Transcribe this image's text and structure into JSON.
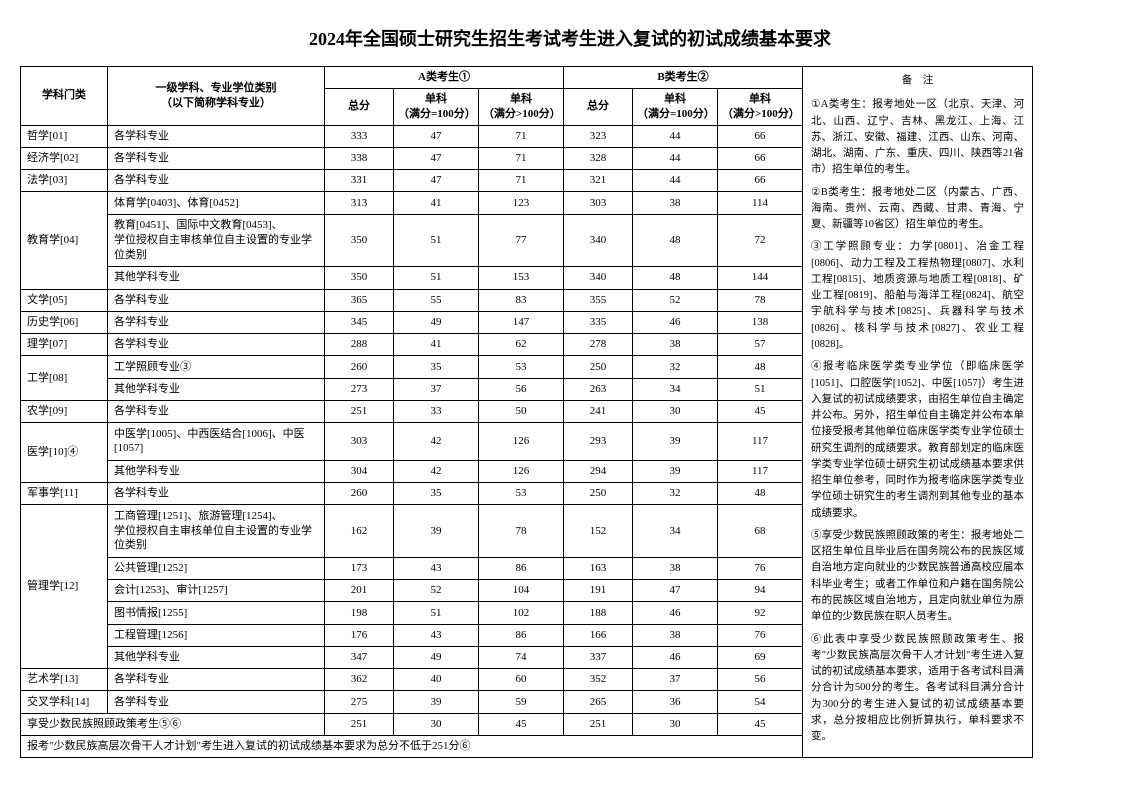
{
  "title": "2024年全国硕士研究生招生考试考生进入复试的初试成绩基本要求",
  "headers": {
    "category": "学科门类",
    "major": "一级学科、专业学位类别\n（以下简称学科专业）",
    "groupA": "A类考生①",
    "groupB": "B类考生②",
    "total": "总分",
    "sub100": "单科\n（满分=100分）",
    "subOver100": "单科\n（满分>100分）",
    "notes": "备　注"
  },
  "rows": [
    {
      "cat": "哲学[01]",
      "major": "各学科专业",
      "a": [
        333,
        47,
        71
      ],
      "b": [
        323,
        44,
        66
      ]
    },
    {
      "cat": "经济学[02]",
      "major": "各学科专业",
      "a": [
        338,
        47,
        71
      ],
      "b": [
        328,
        44,
        66
      ]
    },
    {
      "cat": "法学[03]",
      "major": "各学科专业",
      "a": [
        331,
        47,
        71
      ],
      "b": [
        321,
        44,
        66
      ]
    },
    {
      "cat": "教育学[04]",
      "rowspan": 3,
      "major": "体育学[0403]、体育[0452]",
      "a": [
        313,
        41,
        123
      ],
      "b": [
        303,
        38,
        114
      ]
    },
    {
      "major": "教育[0451]、国际中文教育[0453]、\n学位授权自主审核单位自主设置的专业学位类别",
      "a": [
        350,
        51,
        77
      ],
      "b": [
        340,
        48,
        72
      ]
    },
    {
      "major": "其他学科专业",
      "a": [
        350,
        51,
        153
      ],
      "b": [
        340,
        48,
        144
      ]
    },
    {
      "cat": "文学[05]",
      "major": "各学科专业",
      "a": [
        365,
        55,
        83
      ],
      "b": [
        355,
        52,
        78
      ]
    },
    {
      "cat": "历史学[06]",
      "major": "各学科专业",
      "a": [
        345,
        49,
        147
      ],
      "b": [
        335,
        46,
        138
      ]
    },
    {
      "cat": "理学[07]",
      "major": "各学科专业",
      "a": [
        288,
        41,
        62
      ],
      "b": [
        278,
        38,
        57
      ]
    },
    {
      "cat": "工学[08]",
      "rowspan": 2,
      "major": "工学照顾专业③",
      "a": [
        260,
        35,
        53
      ],
      "b": [
        250,
        32,
        48
      ]
    },
    {
      "major": "其他学科专业",
      "a": [
        273,
        37,
        56
      ],
      "b": [
        263,
        34,
        51
      ]
    },
    {
      "cat": "农学[09]",
      "major": "各学科专业",
      "a": [
        251,
        33,
        50
      ],
      "b": [
        241,
        30,
        45
      ]
    },
    {
      "cat": "医学[10]④",
      "rowspan": 2,
      "major": "中医学[1005]、中西医结合[1006]、中医[1057]",
      "a": [
        303,
        42,
        126
      ],
      "b": [
        293,
        39,
        117
      ]
    },
    {
      "major": "其他学科专业",
      "a": [
        304,
        42,
        126
      ],
      "b": [
        294,
        39,
        117
      ]
    },
    {
      "cat": "军事学[11]",
      "major": "各学科专业",
      "a": [
        260,
        35,
        53
      ],
      "b": [
        250,
        32,
        48
      ]
    },
    {
      "cat": "管理学[12]",
      "rowspan": 6,
      "major": "工商管理[1251]、旅游管理[1254]、\n学位授权自主审核单位自主设置的专业学位类别",
      "a": [
        162,
        39,
        78
      ],
      "b": [
        152,
        34,
        68
      ]
    },
    {
      "major": "公共管理[1252]",
      "a": [
        173,
        43,
        86
      ],
      "b": [
        163,
        38,
        76
      ]
    },
    {
      "major": "会计[1253]、审计[1257]",
      "a": [
        201,
        52,
        104
      ],
      "b": [
        191,
        47,
        94
      ]
    },
    {
      "major": "图书情报[1255]",
      "a": [
        198,
        51,
        102
      ],
      "b": [
        188,
        46,
        92
      ]
    },
    {
      "major": "工程管理[1256]",
      "a": [
        176,
        43,
        86
      ],
      "b": [
        166,
        38,
        76
      ]
    },
    {
      "major": "其他学科专业",
      "a": [
        347,
        49,
        74
      ],
      "b": [
        337,
        46,
        69
      ]
    },
    {
      "cat": "艺术学[13]",
      "major": "各学科专业",
      "a": [
        362,
        40,
        60
      ],
      "b": [
        352,
        37,
        56
      ]
    },
    {
      "cat": "交叉学科[14]",
      "major": "各学科专业",
      "a": [
        275,
        39,
        59
      ],
      "b": [
        265,
        36,
        54
      ]
    },
    {
      "cat": "享受少数民族照顾政策考生⑤⑥",
      "colspan": 2,
      "a": [
        251,
        30,
        45
      ],
      "b": [
        251,
        30,
        45
      ]
    }
  ],
  "bottom": "报考\"少数民族高层次骨干人才计划\"考生进入复试的初试成绩基本要求为总分不低于251分⑥",
  "notesText": [
    "①A类考生：报考地处一区（北京、天津、河北、山西、辽宁、吉林、黑龙江、上海、江苏、浙江、安徽、福建、江西、山东、河南、湖北、湖南、广东、重庆、四川、陕西等21省市）招生单位的考生。",
    "②B类考生：报考地处二区（内蒙古、广西、海南、贵州、云南、西藏、甘肃、青海、宁夏、新疆等10省区）招生单位的考生。",
    "③工学照顾专业：力学[0801]、冶金工程[0806]、动力工程及工程热物理[0807]、水利工程[0815]、地质资源与地质工程[0818]、矿业工程[0819]、船舶与海洋工程[0824]、航空宇航科学与技术[0825]、兵器科学与技术[0826]、核科学与技术[0827]、农业工程[0828]。",
    "④报考临床医学类专业学位（即临床医学[1051]、口腔医学[1052]、中医[1057]）考生进入复试的初试成绩要求，由招生单位自主确定并公布。另外，招生单位自主确定并公布本单位接受报考其他单位临床医学类专业学位硕士研究生调剂的成绩要求。教育部划定的临床医学类专业学位硕士研究生初试成绩基本要求供招生单位参考，同时作为报考临床医学类专业学位硕士研究生的考生调剂到其他专业的基本成绩要求。",
    "⑤享受少数民族照顾政策的考生：报考地处二区招生单位且毕业后在国务院公布的民族区域自治地方定向就业的少数民族普通高校应届本科毕业考生；或者工作单位和户籍在国务院公布的民族区域自治地方，且定向就业单位为原单位的少数民族在职人员考生。",
    "⑥此表中享受少数民族照顾政策考生、报考\"少数民族高层次骨干人才计划\"考生进入复试的初试成绩基本要求，适用于各考试科目满分合计为500分的考生。各考试科目满分合计为300分的考生进入复试的初试成绩基本要求，总分按相应比例折算执行，单科要求不变。"
  ]
}
